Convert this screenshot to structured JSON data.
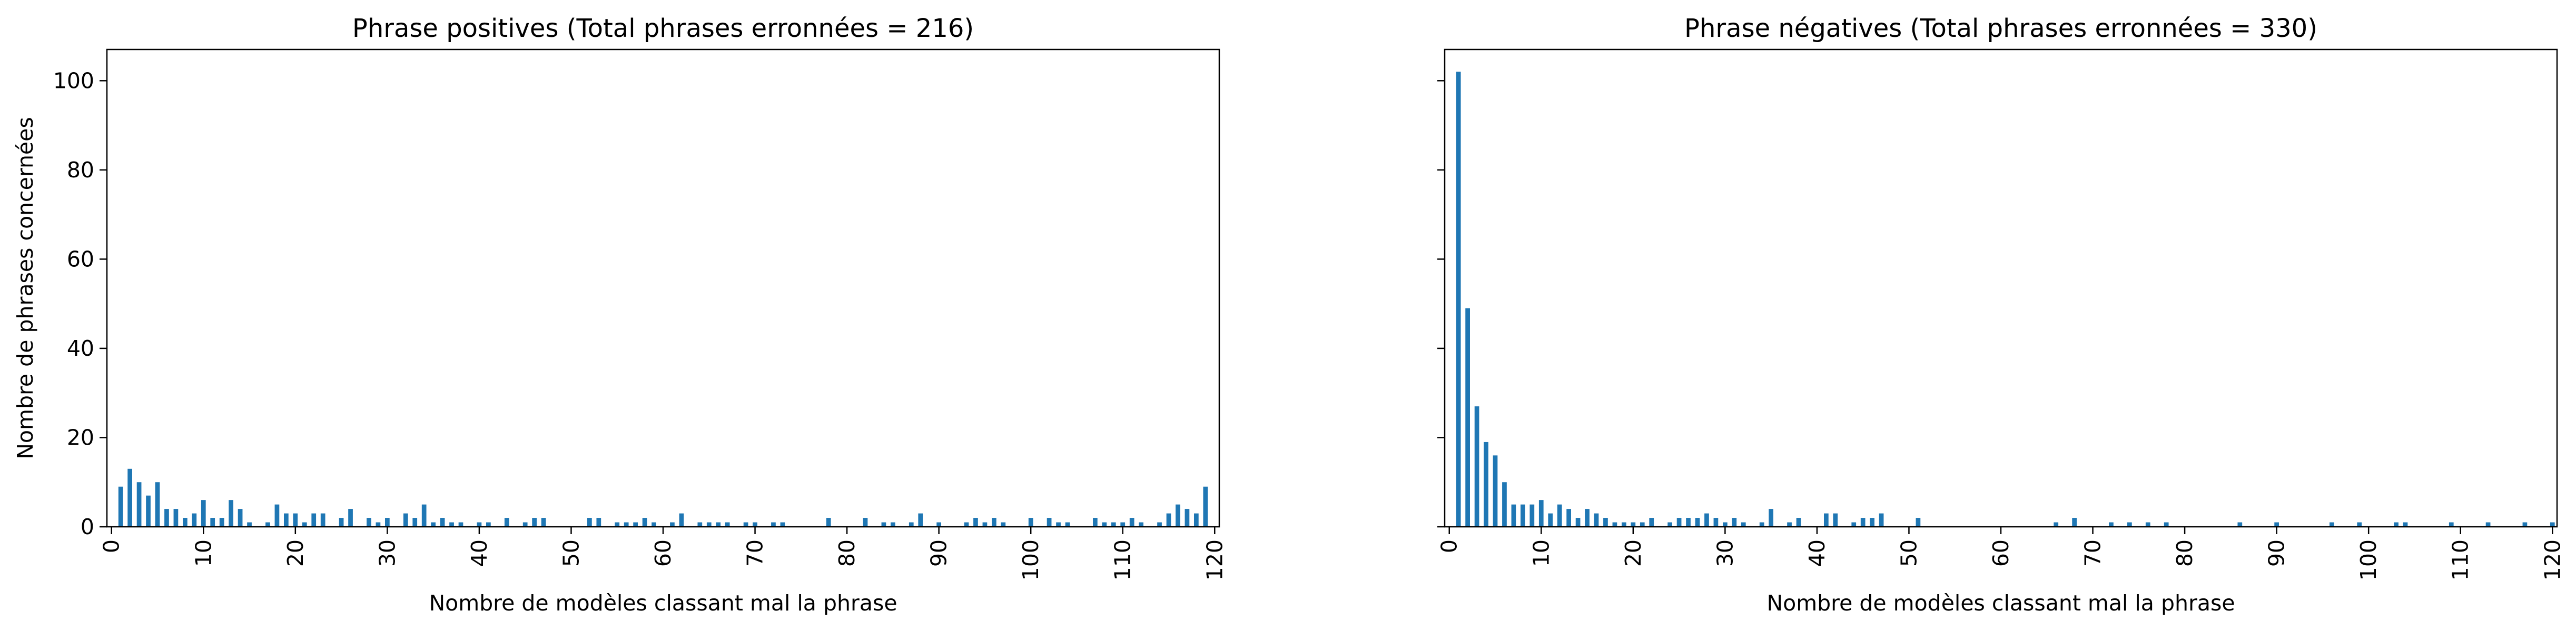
{
  "charts": [
    {
      "type": "bar",
      "title": "Phrase positives (Total phrases erronnées = 216)",
      "xlabel": "Nombre de modèles classant mal la phrase",
      "ylabel": "Nombre de phrases concernées",
      "xlim": [
        0,
        120
      ],
      "ylim": [
        0,
        107
      ],
      "xticks": [
        0,
        10,
        20,
        30,
        40,
        50,
        60,
        70,
        80,
        90,
        100,
        110,
        120
      ],
      "yticks": [
        0,
        20,
        40,
        60,
        80,
        100
      ],
      "bar_color": "#1f77b4",
      "bars": [
        [
          1,
          9
        ],
        [
          2,
          13
        ],
        [
          3,
          10
        ],
        [
          4,
          7
        ],
        [
          5,
          10
        ],
        [
          6,
          4
        ],
        [
          7,
          4
        ],
        [
          8,
          2
        ],
        [
          9,
          3
        ],
        [
          10,
          6
        ],
        [
          11,
          2
        ],
        [
          12,
          2
        ],
        [
          13,
          6
        ],
        [
          14,
          4
        ],
        [
          15,
          1
        ],
        [
          17,
          1
        ],
        [
          18,
          5
        ],
        [
          19,
          3
        ],
        [
          20,
          3
        ],
        [
          21,
          1
        ],
        [
          22,
          3
        ],
        [
          23,
          3
        ],
        [
          25,
          2
        ],
        [
          26,
          4
        ],
        [
          28,
          2
        ],
        [
          29,
          1
        ],
        [
          30,
          2
        ],
        [
          32,
          3
        ],
        [
          33,
          2
        ],
        [
          34,
          5
        ],
        [
          35,
          1
        ],
        [
          36,
          2
        ],
        [
          37,
          1
        ],
        [
          38,
          1
        ],
        [
          40,
          1
        ],
        [
          41,
          1
        ],
        [
          43,
          2
        ],
        [
          45,
          1
        ],
        [
          46,
          2
        ],
        [
          47,
          2
        ],
        [
          52,
          2
        ],
        [
          53,
          2
        ],
        [
          55,
          1
        ],
        [
          56,
          1
        ],
        [
          57,
          1
        ],
        [
          58,
          2
        ],
        [
          59,
          1
        ],
        [
          61,
          1
        ],
        [
          62,
          3
        ],
        [
          64,
          1
        ],
        [
          65,
          1
        ],
        [
          66,
          1
        ],
        [
          67,
          1
        ],
        [
          69,
          1
        ],
        [
          70,
          1
        ],
        [
          72,
          1
        ],
        [
          73,
          1
        ],
        [
          78,
          2
        ],
        [
          82,
          2
        ],
        [
          84,
          1
        ],
        [
          85,
          1
        ],
        [
          87,
          1
        ],
        [
          88,
          3
        ],
        [
          90,
          1
        ],
        [
          93,
          1
        ],
        [
          94,
          2
        ],
        [
          95,
          1
        ],
        [
          96,
          2
        ],
        [
          97,
          1
        ],
        [
          100,
          2
        ],
        [
          102,
          2
        ],
        [
          103,
          1
        ],
        [
          104,
          1
        ],
        [
          107,
          2
        ],
        [
          108,
          1
        ],
        [
          109,
          1
        ],
        [
          110,
          1
        ],
        [
          111,
          2
        ],
        [
          112,
          1
        ],
        [
          114,
          1
        ],
        [
          115,
          3
        ],
        [
          116,
          5
        ],
        [
          117,
          4
        ],
        [
          118,
          3
        ],
        [
          119,
          9
        ]
      ]
    },
    {
      "type": "bar",
      "title": "Phrase négatives (Total phrases erronnées = 330)",
      "xlabel": "Nombre de modèles classant mal la phrase",
      "ylabel": "",
      "xlim": [
        0,
        120
      ],
      "ylim": [
        0,
        107
      ],
      "xticks": [
        0,
        10,
        20,
        30,
        40,
        50,
        60,
        70,
        80,
        90,
        100,
        110,
        120
      ],
      "yticks": [
        0,
        20,
        40,
        60,
        80,
        100
      ],
      "bar_color": "#1f77b4",
      "bars": [
        [
          1,
          102
        ],
        [
          2,
          49
        ],
        [
          3,
          27
        ],
        [
          4,
          19
        ],
        [
          5,
          16
        ],
        [
          6,
          10
        ],
        [
          7,
          5
        ],
        [
          8,
          5
        ],
        [
          9,
          5
        ],
        [
          10,
          6
        ],
        [
          11,
          3
        ],
        [
          12,
          5
        ],
        [
          13,
          4
        ],
        [
          14,
          2
        ],
        [
          15,
          4
        ],
        [
          16,
          3
        ],
        [
          17,
          2
        ],
        [
          18,
          1
        ],
        [
          19,
          1
        ],
        [
          20,
          1
        ],
        [
          21,
          1
        ],
        [
          22,
          2
        ],
        [
          24,
          1
        ],
        [
          25,
          2
        ],
        [
          26,
          2
        ],
        [
          27,
          2
        ],
        [
          28,
          3
        ],
        [
          29,
          2
        ],
        [
          30,
          1
        ],
        [
          31,
          2
        ],
        [
          32,
          1
        ],
        [
          34,
          1
        ],
        [
          35,
          4
        ],
        [
          37,
          1
        ],
        [
          38,
          2
        ],
        [
          41,
          3
        ],
        [
          42,
          3
        ],
        [
          44,
          1
        ],
        [
          45,
          2
        ],
        [
          46,
          2
        ],
        [
          47,
          3
        ],
        [
          51,
          2
        ],
        [
          66,
          1
        ],
        [
          68,
          2
        ],
        [
          72,
          1
        ],
        [
          74,
          1
        ],
        [
          76,
          1
        ],
        [
          78,
          1
        ],
        [
          86,
          1
        ],
        [
          90,
          1
        ],
        [
          96,
          1
        ],
        [
          99,
          1
        ],
        [
          103,
          1
        ],
        [
          104,
          1
        ],
        [
          109,
          1
        ],
        [
          113,
          1
        ],
        [
          117,
          1
        ],
        [
          120,
          1
        ]
      ]
    }
  ]
}
